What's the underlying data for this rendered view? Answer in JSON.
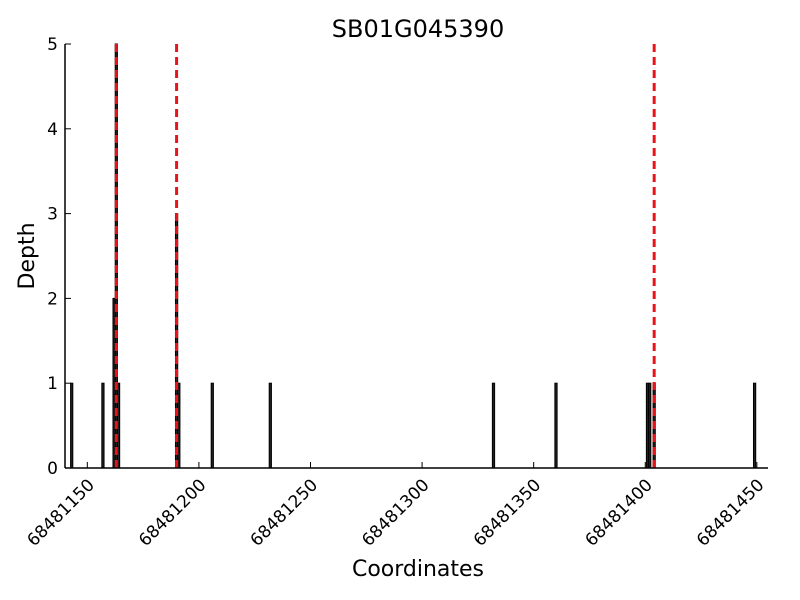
{
  "chart_data": {
    "type": "bar",
    "title": "SB01G045390",
    "xlabel": "Coordinates",
    "ylabel": "Depth",
    "xlim": [
      68481140,
      68481455
    ],
    "ylim": [
      0,
      5
    ],
    "grid": false,
    "xticks": [
      68481150,
      68481200,
      68481250,
      68481300,
      68481350,
      68481400,
      68481450
    ],
    "yticks": [
      0,
      1,
      2,
      3,
      4,
      5
    ],
    "bars": [
      {
        "x": 68481143,
        "depth": 1
      },
      {
        "x": 68481157,
        "depth": 1
      },
      {
        "x": 68481162,
        "depth": 2
      },
      {
        "x": 68481163,
        "depth": 5
      },
      {
        "x": 68481164,
        "depth": 1
      },
      {
        "x": 68481190,
        "depth": 3
      },
      {
        "x": 68481191,
        "depth": 1
      },
      {
        "x": 68481206,
        "depth": 1
      },
      {
        "x": 68481232,
        "depth": 1
      },
      {
        "x": 68481332,
        "depth": 1
      },
      {
        "x": 68481360,
        "depth": 1
      },
      {
        "x": 68481401,
        "depth": 1
      },
      {
        "x": 68481402,
        "depth": 1
      },
      {
        "x": 68481404,
        "depth": 1
      },
      {
        "x": 68481449,
        "depth": 1
      }
    ],
    "reference_lines": [
      {
        "x": 68481163,
        "color": "#e8141b",
        "style": "dashed"
      },
      {
        "x": 68481190,
        "color": "#e8141b",
        "style": "dashed"
      },
      {
        "x": 68481404,
        "color": "#e8141b",
        "style": "dashed"
      }
    ],
    "bar_color": "#000000",
    "bar_fill": "#222222"
  }
}
